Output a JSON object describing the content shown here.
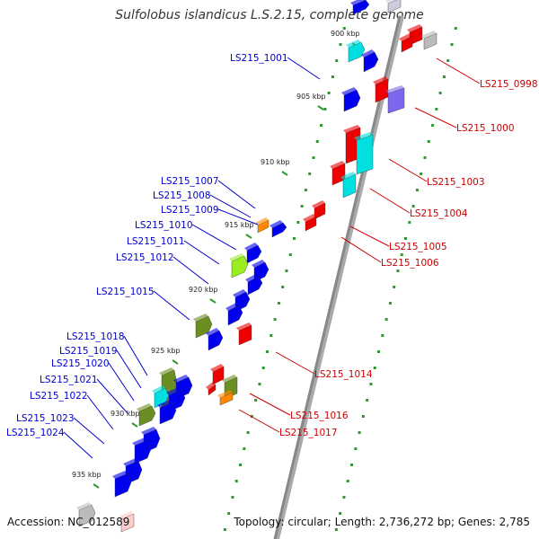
{
  "title": "Sulfolobus islandicus L.S.2.15, complete genome",
  "accession": "Accession: NC_012589",
  "topology": "Topology: circular; Length: 2,736,272 bp; Genes: 2,785",
  "kbp_ticks": [
    "900 kbp",
    "905 kbp",
    "910 kbp",
    "915 kbp",
    "920 kbp",
    "925 kbp",
    "930 kbp",
    "935 kbp"
  ],
  "colors": {
    "forward_label": "#0000cc",
    "reverse_label": "#cc0000",
    "forward_gene": "#0000ee",
    "reverse_gene": "#ee0000",
    "cyan": "#00e0e0",
    "olive": "#6b8e23",
    "lime": "#99ee22",
    "orange": "#ff8800",
    "slate": "#7b68ee",
    "backbone": "#888888"
  },
  "forward_labels": [
    "LS215_1001",
    "LS215_1007",
    "LS215_1008",
    "LS215_1009",
    "LS215_1010",
    "LS215_1011",
    "LS215_1012",
    "LS215_1015",
    "LS215_1018",
    "LS215_1019",
    "LS215_1020",
    "LS215_1021",
    "LS215_1022",
    "LS215_1023",
    "LS215_1024"
  ],
  "reverse_labels": [
    "LS215_0998",
    "LS215_1000",
    "LS215_1003",
    "LS215_1004",
    "LS215_1005",
    "LS215_1006",
    "LS215_1014",
    "LS215_1016",
    "LS215_1017"
  ]
}
